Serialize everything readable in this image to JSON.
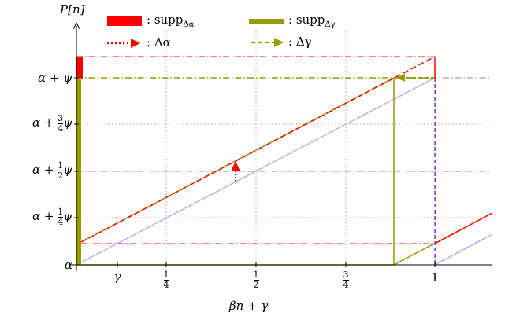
{
  "axes": {
    "y_title": "P[n]",
    "x_title": "βn + γ"
  },
  "y_ticks": [
    {
      "key": "alpha",
      "text": "α"
    },
    {
      "key": "q1",
      "pre": "α + ",
      "num": "1",
      "den": "4",
      "post": "ψ"
    },
    {
      "key": "q2",
      "pre": "α + ",
      "num": "1",
      "den": "2",
      "post": "ψ"
    },
    {
      "key": "q3",
      "pre": "α + ",
      "num": "3",
      "den": "4",
      "post": "ψ"
    },
    {
      "key": "full",
      "text": "α + ψ"
    }
  ],
  "x_ticks": [
    {
      "key": "gamma",
      "text": "γ"
    },
    {
      "key": "quarter",
      "num": "1",
      "den": "4"
    },
    {
      "key": "half",
      "num": "1",
      "den": "2"
    },
    {
      "key": "threequarter",
      "num": "3",
      "den": "4"
    },
    {
      "key": "one",
      "text": "1"
    }
  ],
  "legend": [
    {
      "key": "supp_alpha",
      "prefix": ": supp",
      "sub": "Δα"
    },
    {
      "key": "supp_gamma",
      "prefix": ": supp",
      "sub": "Δγ"
    },
    {
      "key": "delta_alpha",
      "prefix": ": Δα"
    },
    {
      "key": "delta_gamma",
      "prefix": ": Δγ"
    }
  ],
  "colors": {
    "red": "#ff0000",
    "olive": "#999900",
    "blue_light": "#aaaaee",
    "blue_dash": "#5555ff",
    "grid": "#888888"
  }
}
